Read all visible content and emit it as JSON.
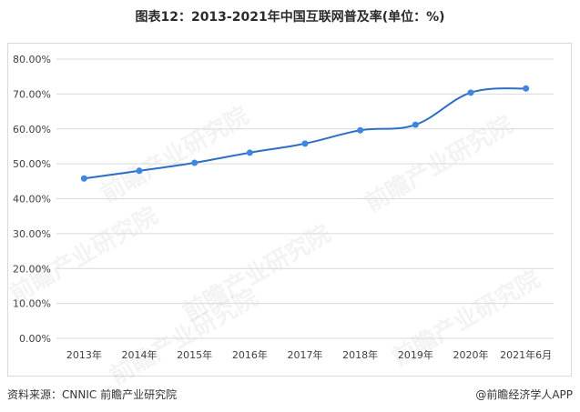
{
  "title": "图表12：2013-2021年中国互联网普及率(单位：%)",
  "footer": {
    "source": "资料来源：CNNIC 前瞻产业研究院",
    "brand": "@前瞻经济学人APP"
  },
  "watermark": "前瞻产业研究院",
  "colors": {
    "line": "#2f6fc2",
    "point": "#3f86e3",
    "grid": "#d9d9d9",
    "axis_text": "#404040"
  },
  "chart_data": {
    "type": "line",
    "title": "图表12：2013-2021年中国互联网普及率(单位：%)",
    "categories": [
      "2013年",
      "2014年",
      "2015年",
      "2016年",
      "2017年",
      "2018年",
      "2019年",
      "2020年",
      "2021年6月"
    ],
    "series": [
      {
        "values": [
          45.8,
          48.0,
          50.3,
          53.2,
          55.8,
          59.6,
          61.2,
          70.4,
          71.6
        ]
      }
    ],
    "y_ticks": [
      "0.00%",
      "10.00%",
      "20.00%",
      "30.00%",
      "40.00%",
      "50.00%",
      "60.00%",
      "70.00%",
      "80.00%"
    ],
    "ylim": [
      0,
      80
    ],
    "grid": true,
    "smooth": true
  }
}
